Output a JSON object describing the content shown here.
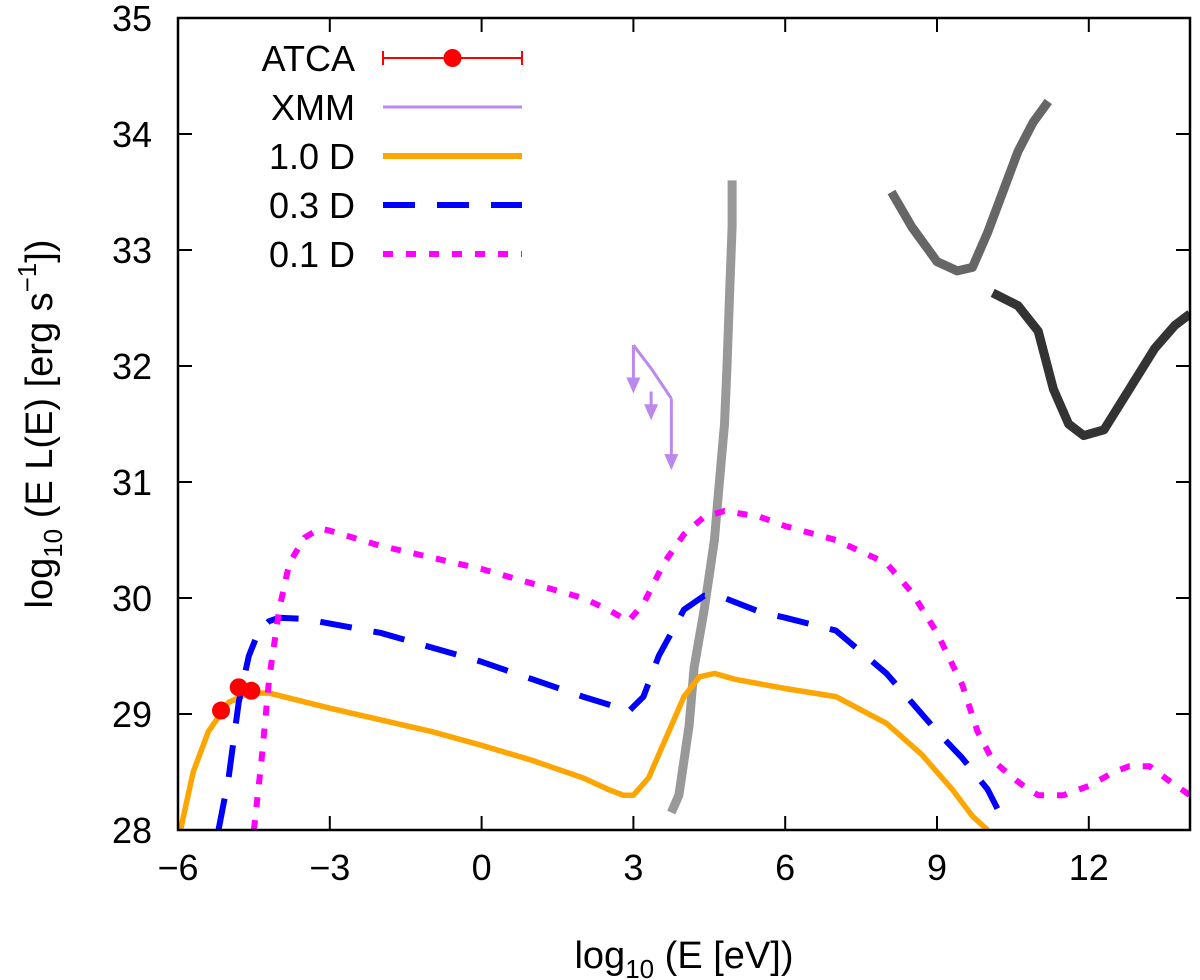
{
  "chart_data": {
    "type": "line",
    "title": "",
    "xlabel": {
      "prefix": "log",
      "subscript": "10",
      "rest": " (E [eV])"
    },
    "ylabel": {
      "prefix": "log",
      "subscript": "10",
      "middle": " (E L(E) [erg s",
      "superscript": "−1",
      "end": "])"
    },
    "xlim": [
      -6,
      14
    ],
    "ylim": [
      28,
      35
    ],
    "xticks": [
      -6,
      -3,
      0,
      3,
      6,
      9,
      12
    ],
    "xtick_labels": [
      "−6",
      "−3",
      "0",
      "3",
      "6",
      "9",
      "12"
    ],
    "yticks": [
      28,
      29,
      30,
      31,
      32,
      33,
      34,
      35
    ],
    "ytick_labels": [
      "28",
      "29",
      "30",
      "31",
      "32",
      "33",
      "34",
      "35"
    ],
    "grid": false,
    "legend_position": "top-left",
    "legend": [
      {
        "label": "ATCA",
        "color": "#ff0000",
        "style": "points-errorbar"
      },
      {
        "label": "XMM",
        "color": "#bb88ee",
        "style": "solid-thin"
      },
      {
        "label": "1.0 D",
        "color": "#ffa500",
        "style": "solid"
      },
      {
        "label": "0.3 D",
        "color": "#0000ff",
        "style": "dashed"
      },
      {
        "label": "0.1 D",
        "color": "#ff00ff",
        "style": "dotted"
      }
    ],
    "series": [
      {
        "name": "ATCA",
        "color": "#ff0000",
        "points": [
          [
            -5.15,
            29.03
          ],
          [
            -4.8,
            29.23
          ],
          [
            -4.55,
            29.2
          ]
        ]
      },
      {
        "name": "XMM",
        "color": "#bb88ee",
        "x": [
          3.0,
          3.75
        ],
        "y": [
          31.78,
          31.72
        ],
        "upper_limits": [
          {
            "x": 3.0,
            "from": 31.78,
            "to": 32.18
          },
          {
            "x": 3.35,
            "from": 31.55,
            "to": 31.78
          },
          {
            "x": 3.75,
            "from": 31.12,
            "to": 31.72
          }
        ]
      },
      {
        "name": "1.0 D",
        "color": "#ffa500",
        "x": [
          -5.95,
          -5.7,
          -5.4,
          -5.0,
          -4.6,
          -4.2,
          -3.0,
          -1.0,
          0.0,
          1.0,
          2.0,
          2.5,
          2.8,
          3.0,
          3.3,
          3.6,
          4.0,
          4.3,
          4.6,
          5.0,
          6.0,
          7.0,
          8.0,
          8.7,
          9.3,
          9.7,
          10.0
        ],
        "y": [
          28.0,
          28.5,
          28.85,
          29.1,
          29.18,
          29.18,
          29.05,
          28.85,
          28.73,
          28.6,
          28.45,
          28.35,
          28.3,
          28.3,
          28.45,
          28.75,
          29.15,
          29.32,
          29.35,
          29.3,
          29.22,
          29.15,
          28.92,
          28.65,
          28.35,
          28.12,
          28.0
        ]
      },
      {
        "name": "0.3 D",
        "color": "#0000ff",
        "x": [
          -5.2,
          -5.0,
          -4.8,
          -4.6,
          -4.4,
          -4.2,
          -4.0,
          -3.5,
          -2.0,
          0.0,
          1.0,
          2.0,
          2.6,
          2.9,
          3.2,
          3.5,
          4.0,
          4.4,
          4.8,
          5.5,
          6.0,
          7.0,
          8.0,
          8.5,
          9.0,
          9.5,
          10.0,
          10.35
        ],
        "y": [
          28.0,
          28.45,
          29.1,
          29.5,
          29.72,
          29.8,
          29.83,
          29.82,
          29.7,
          29.45,
          29.3,
          29.15,
          29.07,
          29.02,
          29.15,
          29.5,
          29.9,
          30.02,
          30.0,
          29.88,
          29.83,
          29.72,
          29.35,
          29.1,
          28.85,
          28.62,
          28.35,
          28.05
        ]
      },
      {
        "name": "0.1 D",
        "color": "#ff00ff",
        "x": [
          -4.5,
          -4.35,
          -4.2,
          -4.0,
          -3.8,
          -3.5,
          -3.2,
          -3.0,
          -2.0,
          0.0,
          2.0,
          2.5,
          2.9,
          3.2,
          3.6,
          4.0,
          4.4,
          4.8,
          5.5,
          6.0,
          7.0,
          8.0,
          8.5,
          9.0,
          9.5,
          9.8,
          10.1,
          10.5,
          10.8,
          11.0,
          11.5,
          12.0,
          12.5,
          12.8,
          13.2,
          13.6,
          14.0
        ],
        "y": [
          28.0,
          28.6,
          29.3,
          29.9,
          30.3,
          30.52,
          30.6,
          30.58,
          30.45,
          30.25,
          30.0,
          29.9,
          29.8,
          29.95,
          30.3,
          30.55,
          30.7,
          30.75,
          30.7,
          30.62,
          30.5,
          30.3,
          30.05,
          29.7,
          29.25,
          28.85,
          28.6,
          28.45,
          28.35,
          28.3,
          28.3,
          28.38,
          28.5,
          28.55,
          28.55,
          28.42,
          28.3
        ]
      },
      {
        "name": "sensitivity-1",
        "color": "#999999",
        "x": [
          3.75,
          3.9,
          4.1,
          4.2,
          4.4,
          4.6,
          4.7,
          4.8,
          4.85,
          4.9,
          4.95,
          4.95
        ],
        "y": [
          28.15,
          28.3,
          28.9,
          29.4,
          29.9,
          30.5,
          31.0,
          31.5,
          32.0,
          32.6,
          33.2,
          33.6
        ]
      },
      {
        "name": "sensitivity-2",
        "color": "#666666",
        "x": [
          8.1,
          8.5,
          9.0,
          9.4,
          9.7,
          10.0,
          10.3,
          10.6,
          10.9,
          11.2
        ],
        "y": [
          33.5,
          33.2,
          32.9,
          32.82,
          32.85,
          33.15,
          33.5,
          33.85,
          34.1,
          34.28
        ]
      },
      {
        "name": "sensitivity-3",
        "color": "#333333",
        "x": [
          10.1,
          10.6,
          11.0,
          11.3,
          11.6,
          11.9,
          12.3,
          12.8,
          13.3,
          13.7,
          14.0
        ],
        "y": [
          32.63,
          32.52,
          32.3,
          31.8,
          31.5,
          31.4,
          31.45,
          31.8,
          32.15,
          32.35,
          32.45
        ]
      }
    ]
  }
}
